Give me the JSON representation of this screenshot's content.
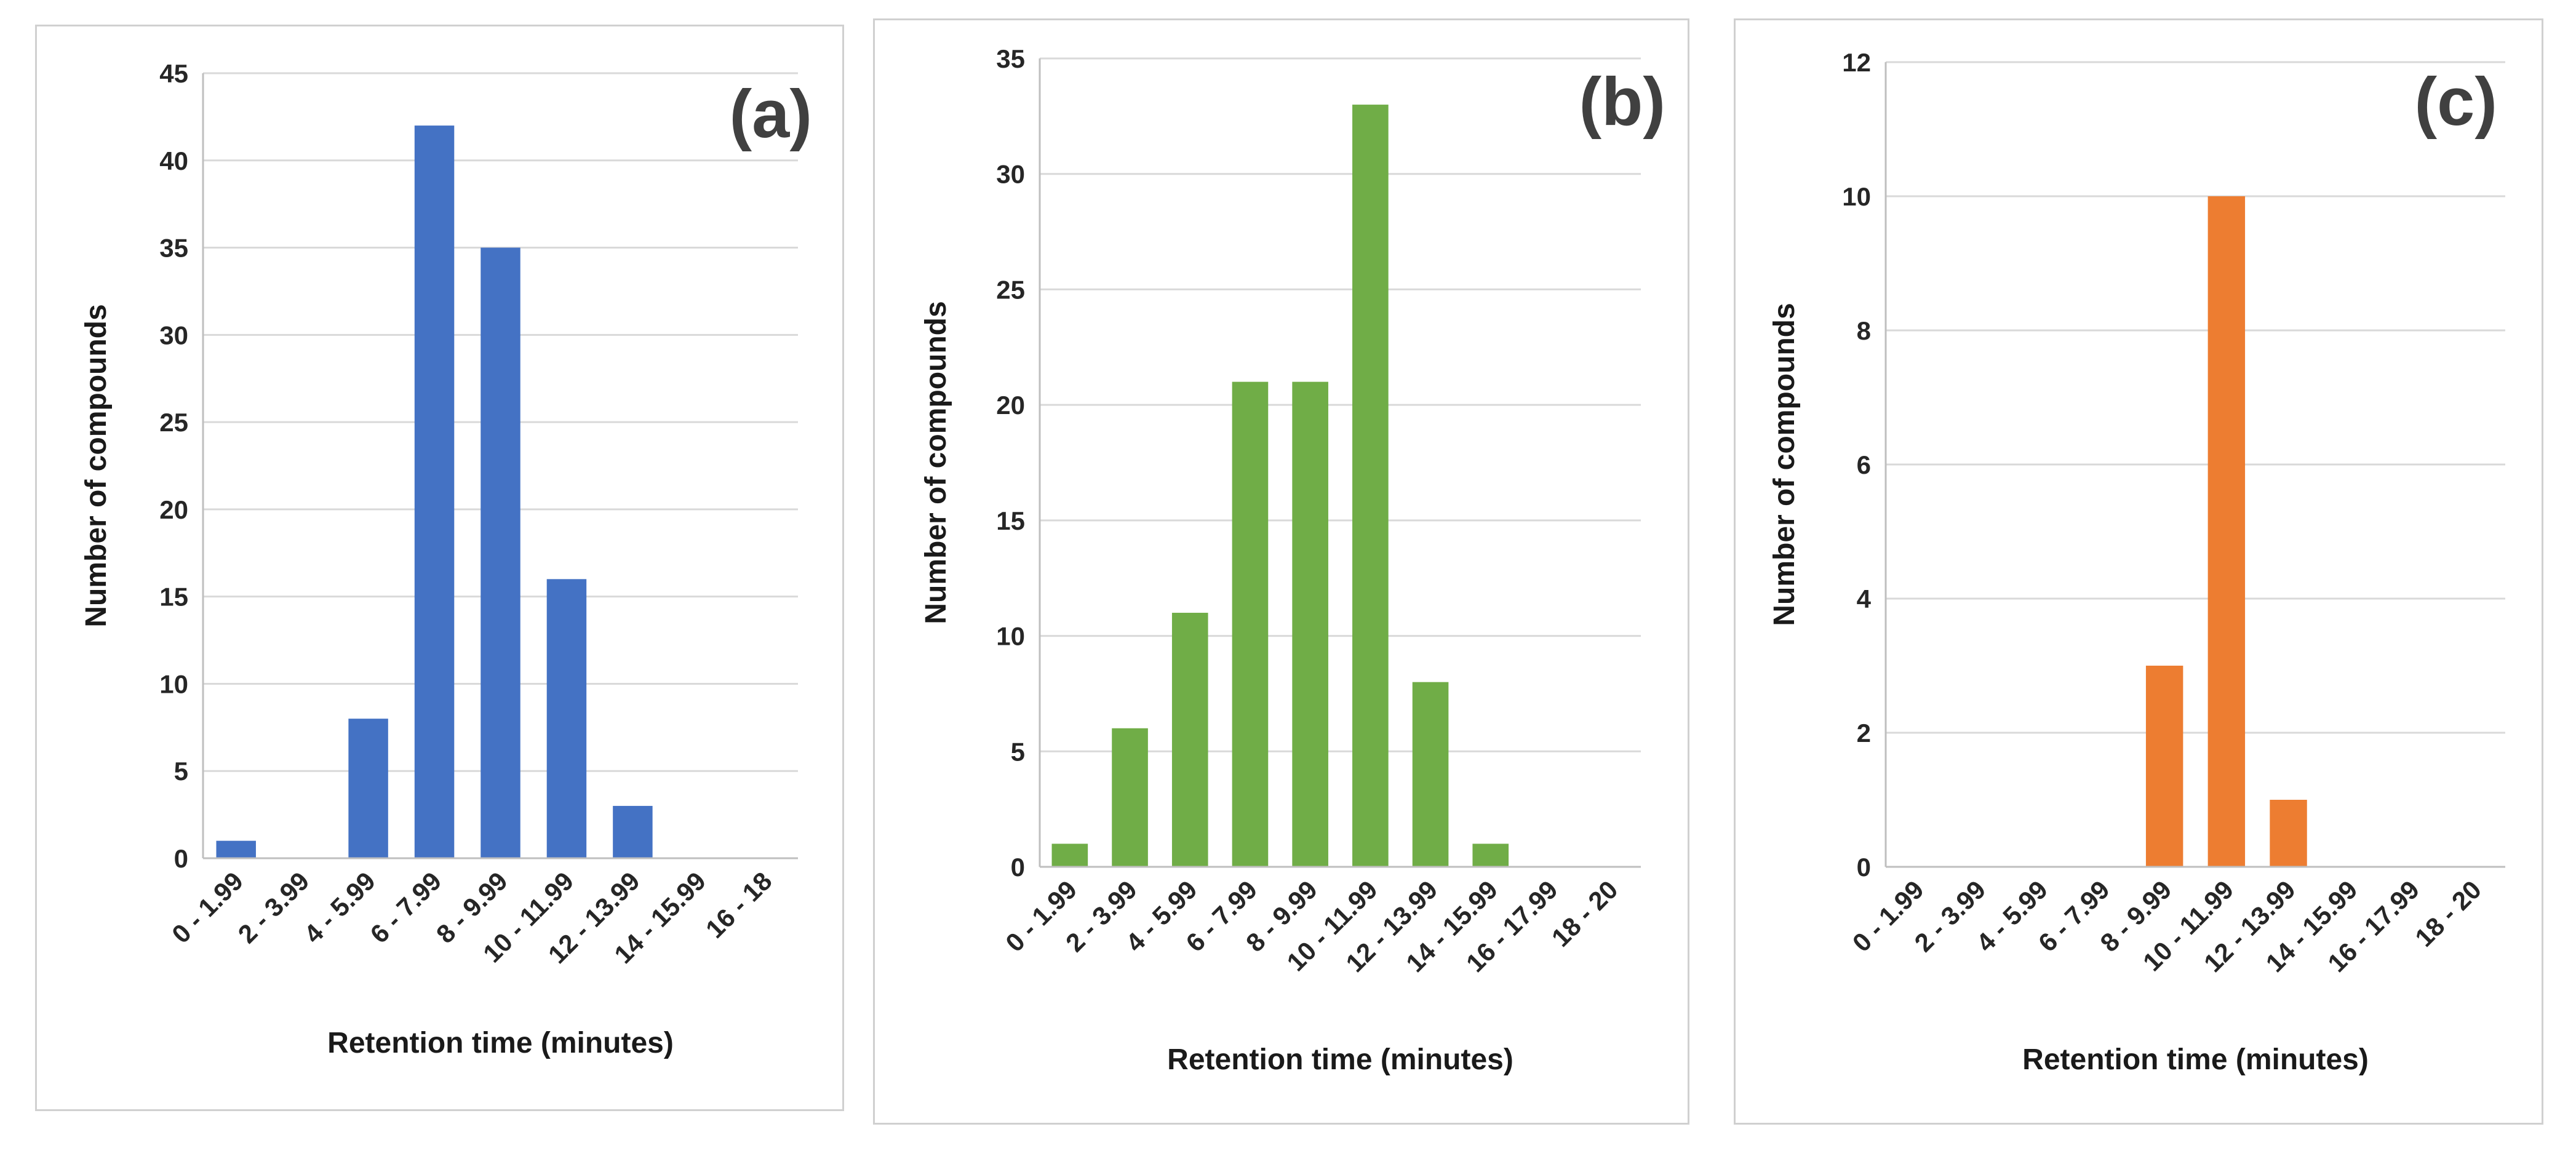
{
  "chart_data": [
    {
      "type": "bar",
      "panel_label": "(a)",
      "color": "#4472C4",
      "categories": [
        "0 - 1.99",
        "2 - 3.99",
        "4 - 5.99",
        "6 - 7.99",
        "8 - 9.99",
        "10 - 11.99",
        "12 - 13.99",
        "14 - 15.99",
        "16 - 18"
      ],
      "values": [
        1,
        0,
        8,
        42,
        35,
        16,
        3,
        0,
        0
      ],
      "ylim": [
        0,
        45
      ],
      "yticks": [
        0,
        5,
        10,
        15,
        20,
        25,
        30,
        35,
        40,
        45
      ],
      "xlabel": "Retention time (minutes)",
      "ylabel": "Number of compounds",
      "grid": true
    },
    {
      "type": "bar",
      "panel_label": "(b)",
      "color": "#70AD47",
      "categories": [
        "0 - 1.99",
        "2 - 3.99",
        "4 - 5.99",
        "6 - 7.99",
        "8 - 9.99",
        "10 - 11.99",
        "12 - 13.99",
        "14 - 15.99",
        "16 - 17.99",
        "18 - 20"
      ],
      "values": [
        1,
        6,
        11,
        21,
        21,
        33,
        8,
        1,
        0,
        0
      ],
      "ylim": [
        0,
        35
      ],
      "yticks": [
        0,
        5,
        10,
        15,
        20,
        25,
        30,
        35
      ],
      "xlabel": "Retention time (minutes)",
      "ylabel": "Number of compounds",
      "grid": true
    },
    {
      "type": "bar",
      "panel_label": "(c)",
      "color": "#ED7D31",
      "categories": [
        "0 - 1.99",
        "2 - 3.99",
        "4 - 5.99",
        "6 - 7.99",
        "8 - 9.99",
        "10 - 11.99",
        "12 - 13.99",
        "14 - 15.99",
        "16 - 17.99",
        "18 - 20"
      ],
      "values": [
        0,
        0,
        0,
        0,
        3,
        10,
        1,
        0,
        0,
        0
      ],
      "ylim": [
        0,
        12
      ],
      "yticks": [
        0,
        2,
        4,
        6,
        8,
        10,
        12
      ],
      "xlabel": "Retention time (minutes)",
      "ylabel": "Number of compounds",
      "grid": true
    }
  ]
}
